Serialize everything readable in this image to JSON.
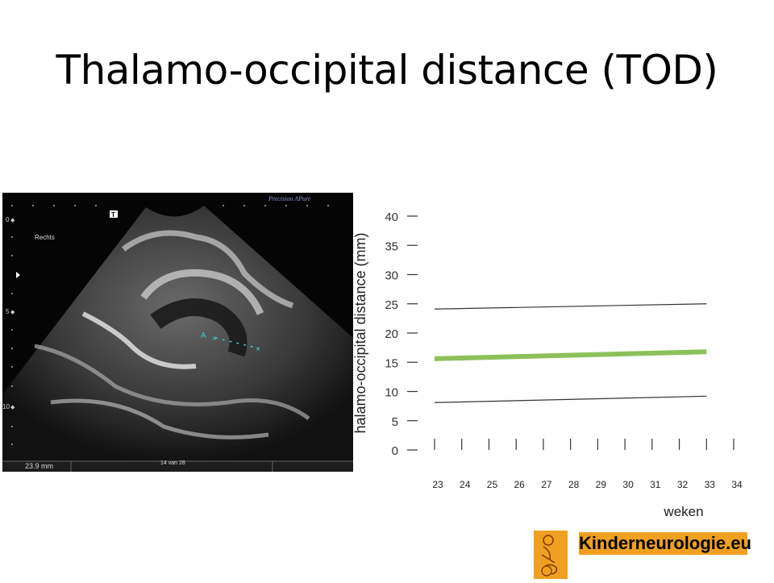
{
  "slide": {
    "title": "Thalamo-occipital distance (TOD)"
  },
  "ultrasound": {
    "brand": "Precision APure",
    "side_label": "Rechts",
    "depth_marks": [
      "0",
      "5",
      "10"
    ],
    "measure_marker": "A",
    "measurement": "23.9  mm",
    "image_counter": "14 van 28"
  },
  "chart_data": {
    "type": "line",
    "ylabel": "halamo-occipital distance (mm)",
    "xlabel": "weken",
    "yticks": [
      "40",
      "35",
      "30",
      "25",
      "20",
      "15",
      "10",
      "5",
      "0"
    ],
    "xticks": [
      "23",
      "24",
      "25",
      "26",
      "27",
      "28",
      "29",
      "30",
      "31",
      "32",
      "33",
      "34"
    ],
    "xlim": [
      23,
      34
    ],
    "ylim": [
      0,
      40
    ],
    "series": [
      {
        "role": "upper",
        "color": "#333333",
        "x": [
          23,
          33
        ],
        "y": [
          24.1,
          25.0
        ]
      },
      {
        "role": "mean",
        "color": "#8dc05b",
        "x": [
          23,
          33
        ],
        "y": [
          15.6,
          16.8
        ]
      },
      {
        "role": "lower",
        "color": "#333333",
        "x": [
          23,
          33
        ],
        "y": [
          8.1,
          9.2
        ]
      }
    ],
    "grid": false
  },
  "logo": {
    "text": "Kinderneurologie.eu",
    "accent_color": "#f0a020"
  }
}
